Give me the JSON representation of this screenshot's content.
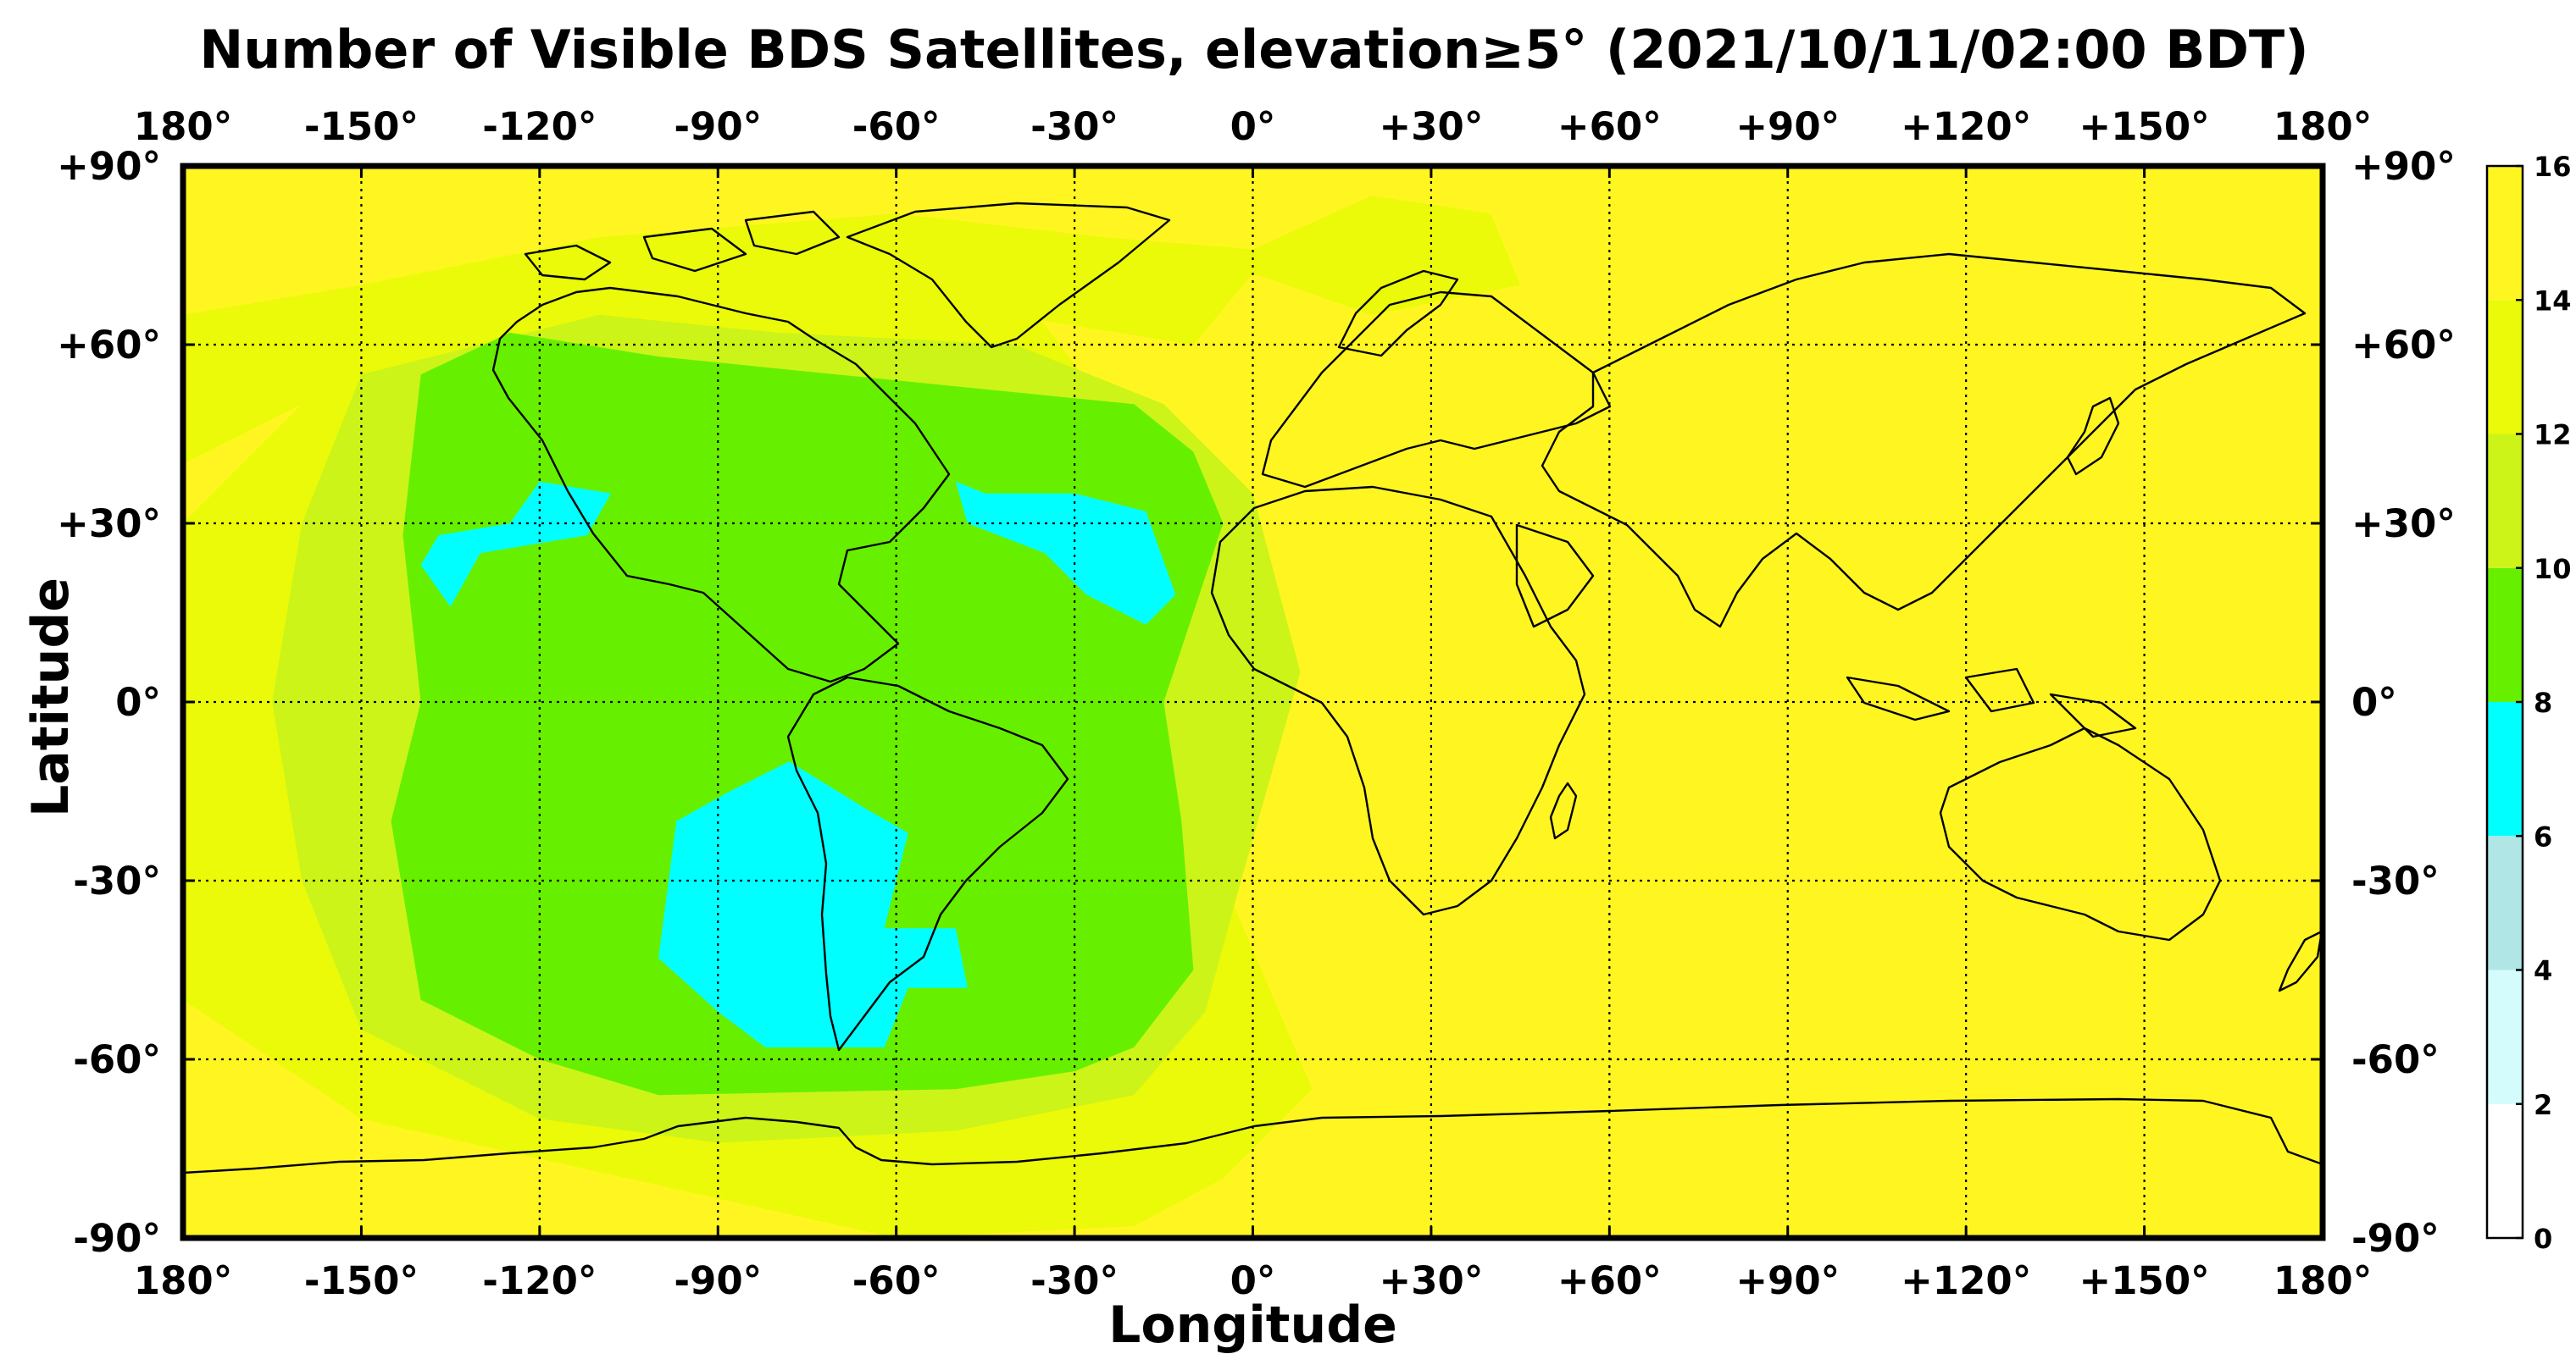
{
  "title": "Number of Visible BDS Satellites, elevation≥5° (2021/10/11/02:00 BDT)",
  "xlabel": "Longitude",
  "ylabel": "Latitude",
  "x_ticks": [
    {
      "value": -180,
      "label": "180°"
    },
    {
      "value": -150,
      "label": "-150°"
    },
    {
      "value": -120,
      "label": "-120°"
    },
    {
      "value": -90,
      "label": "-90°"
    },
    {
      "value": -60,
      "label": "-60°"
    },
    {
      "value": -30,
      "label": "-30°"
    },
    {
      "value": 0,
      "label": "0°"
    },
    {
      "value": 30,
      "label": "+30°"
    },
    {
      "value": 60,
      "label": "+60°"
    },
    {
      "value": 90,
      "label": "+90°"
    },
    {
      "value": 120,
      "label": "+120°"
    },
    {
      "value": 150,
      "label": "+150°"
    },
    {
      "value": 180,
      "label": "180°"
    }
  ],
  "y_ticks": [
    {
      "value": 90,
      "label": "+90°"
    },
    {
      "value": 60,
      "label": "+60°"
    },
    {
      "value": 30,
      "label": "+30°"
    },
    {
      "value": 0,
      "label": "0°"
    },
    {
      "value": -30,
      "label": "-30°"
    },
    {
      "value": -60,
      "label": "-60°"
    },
    {
      "value": -90,
      "label": "-90°"
    }
  ],
  "colorbar": {
    "ticks": [
      "0",
      "2",
      "4",
      "6",
      "8",
      "10",
      "12",
      "14",
      "16"
    ],
    "bins": [
      {
        "from": 0,
        "to": 2,
        "color": "#ffffff"
      },
      {
        "from": 2,
        "to": 4,
        "color": "#d4fcfc"
      },
      {
        "from": 4,
        "to": 6,
        "color": "#b0e6e6"
      },
      {
        "from": 6,
        "to": 8,
        "color": "#00ffff"
      },
      {
        "from": 8,
        "to": 10,
        "color": "#66f000"
      },
      {
        "from": 10,
        "to": 12,
        "color": "#ccf418"
      },
      {
        "from": 12,
        "to": 14,
        "color": "#eafa08"
      },
      {
        "from": 14,
        "to": 16,
        "color": "#fff521"
      }
    ]
  },
  "chart_data": {
    "type": "heatmap",
    "title": "Number of Visible BDS Satellites, elevation≥5° (2021/10/11/02:00 BDT)",
    "xlabel": "Longitude",
    "ylabel": "Latitude",
    "xlim": [
      -180,
      180
    ],
    "ylim": [
      -90,
      90
    ],
    "colorbar_range": [
      0,
      16
    ],
    "grid": true,
    "background_value": 15,
    "regions": [
      {
        "value": 13,
        "polygon": [
          [
            -180,
            65
          ],
          [
            -150,
            70
          ],
          [
            -110,
            78
          ],
          [
            -60,
            82
          ],
          [
            -25,
            78
          ],
          [
            0,
            76
          ],
          [
            20,
            85
          ],
          [
            40,
            82
          ],
          [
            45,
            70
          ],
          [
            20,
            65
          ],
          [
            0,
            72
          ],
          [
            -10,
            60
          ],
          [
            -60,
            68
          ],
          [
            -120,
            62
          ],
          [
            -160,
            50
          ],
          [
            -180,
            40
          ]
        ]
      },
      {
        "value": 13,
        "polygon": [
          [
            -180,
            -50
          ],
          [
            -150,
            -70
          ],
          [
            -60,
            -90
          ],
          [
            -20,
            -88
          ],
          [
            -5,
            -80
          ],
          [
            10,
            -65
          ],
          [
            -5,
            -30
          ],
          [
            -10,
            10
          ],
          [
            -25,
            50
          ],
          [
            -40,
            70
          ],
          [
            -100,
            70
          ],
          [
            -150,
            60
          ],
          [
            -180,
            30
          ]
        ]
      },
      {
        "value": 11,
        "polygon": [
          [
            -160,
            30
          ],
          [
            -150,
            55
          ],
          [
            -110,
            65
          ],
          [
            -80,
            62
          ],
          [
            -40,
            60
          ],
          [
            -15,
            50
          ],
          [
            0,
            35
          ],
          [
            8,
            5
          ],
          [
            -2,
            -30
          ],
          [
            -8,
            -52
          ],
          [
            -20,
            -66
          ],
          [
            -50,
            -72
          ],
          [
            -90,
            -74
          ],
          [
            -120,
            -70
          ],
          [
            -150,
            -55
          ],
          [
            -160,
            -30
          ],
          [
            -165,
            0
          ]
        ]
      },
      {
        "value": 9,
        "polygon": [
          [
            -143,
            28
          ],
          [
            -140,
            55
          ],
          [
            -125,
            62
          ],
          [
            -100,
            58
          ],
          [
            -70,
            55
          ],
          [
            -40,
            52
          ],
          [
            -20,
            50
          ],
          [
            -10,
            42
          ],
          [
            -5,
            30
          ],
          [
            -15,
            0
          ],
          [
            -12,
            -20
          ],
          [
            -10,
            -45
          ],
          [
            -20,
            -58
          ],
          [
            -30,
            -62
          ],
          [
            -50,
            -65
          ],
          [
            -100,
            -66
          ],
          [
            -120,
            -60
          ],
          [
            -140,
            -50
          ],
          [
            -145,
            -20
          ],
          [
            -140,
            0
          ]
        ]
      },
      {
        "value": 7,
        "polygon": [
          [
            -140,
            23
          ],
          [
            -137,
            28
          ],
          [
            -125,
            30
          ],
          [
            -120,
            37
          ],
          [
            -108,
            35
          ],
          [
            -112,
            28
          ],
          [
            -130,
            25
          ],
          [
            -135,
            16
          ]
        ]
      },
      {
        "value": 7,
        "polygon": [
          [
            -50,
            37
          ],
          [
            -45,
            35
          ],
          [
            -30,
            35
          ],
          [
            -18,
            32
          ],
          [
            -13,
            18
          ],
          [
            -18,
            13
          ],
          [
            -28,
            18
          ],
          [
            -35,
            25
          ],
          [
            -48,
            30
          ]
        ]
      },
      {
        "value": 7,
        "polygon": [
          [
            -100,
            -43
          ],
          [
            -97,
            -20
          ],
          [
            -88,
            -15
          ],
          [
            -78,
            -10
          ],
          [
            -65,
            -18
          ],
          [
            -58,
            -22
          ],
          [
            -62,
            -38
          ],
          [
            -50,
            -38
          ],
          [
            -48,
            -48
          ],
          [
            -58,
            -48
          ],
          [
            -62,
            -58
          ],
          [
            -82,
            -58
          ],
          [
            -90,
            -52
          ]
        ]
      }
    ]
  }
}
